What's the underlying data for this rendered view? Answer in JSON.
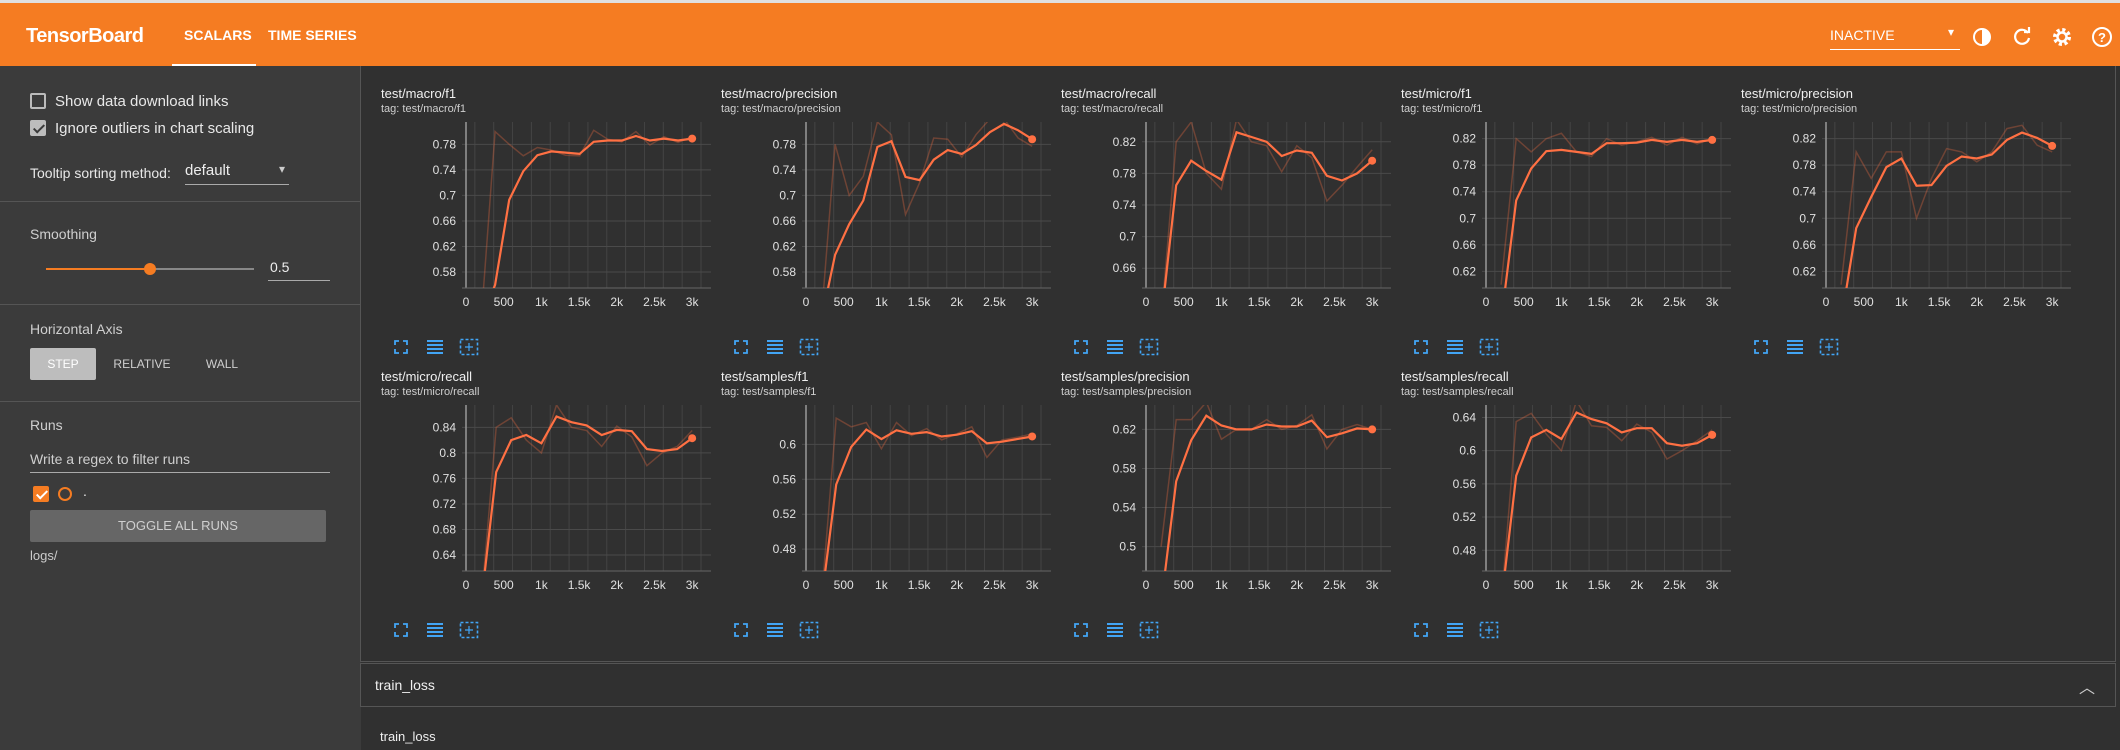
{
  "header": {
    "brand": "TensorBoard",
    "tabs": [
      {
        "label": "SCALARS"
      },
      {
        "label": "TIME SERIES"
      }
    ],
    "status_select": "INACTIVE"
  },
  "sidebar": {
    "show_download": "Show data download links",
    "ignore_outliers": "Ignore outliers in chart scaling",
    "tooltip_label": "Tooltip sorting method:",
    "tooltip_value": "default",
    "smoothing_label": "Smoothing",
    "smoothing_value": "0.5",
    "haxis_label": "Horizontal Axis",
    "haxis_options": [
      "STEP",
      "RELATIVE",
      "WALL"
    ],
    "runs_label": "Runs",
    "runs_filter_placeholder": "Write a regex to filter runs",
    "run_name": ".",
    "toggle_all": "TOGGLE ALL RUNS",
    "logdir": "logs/"
  },
  "colors": {
    "accent": "#f57c22",
    "line": "#ff7043"
  },
  "charts": [
    {
      "title": "test/macro/f1",
      "tag_label": "tag:",
      "tag": "test/macro/f1",
      "yticks": [
        "0.78",
        "0.74",
        "0.7",
        "0.66",
        "0.62",
        "0.58"
      ],
      "ylim": [
        0.555,
        0.815
      ],
      "smoothed": [
        0.2,
        0.56,
        0.693,
        0.738,
        0.763,
        0.769,
        0.767,
        0.765,
        0.784,
        0.786,
        0.786,
        0.793,
        0.786,
        0.789,
        0.786,
        0.789
      ],
      "raw": [
        0.53,
        0.8,
        0.78,
        0.762,
        0.775,
        0.771,
        0.763,
        0.762,
        0.802,
        0.788,
        0.784,
        0.8,
        0.779,
        0.792,
        0.783,
        0.792
      ]
    },
    {
      "title": "test/macro/precision",
      "tag_label": "tag:",
      "tag": "test/macro/precision",
      "yticks": [
        "0.78",
        "0.74",
        "0.7",
        "0.66",
        "0.62",
        "0.58"
      ],
      "ylim": [
        0.555,
        0.815
      ],
      "smoothed": [
        0.2,
        0.607,
        0.655,
        0.692,
        0.776,
        0.785,
        0.729,
        0.724,
        0.756,
        0.771,
        0.765,
        0.779,
        0.799,
        0.812,
        0.802,
        0.788
      ],
      "raw": [
        0.5,
        0.78,
        0.7,
        0.73,
        0.815,
        0.795,
        0.67,
        0.72,
        0.79,
        0.788,
        0.76,
        0.795,
        0.82,
        0.82,
        0.79,
        0.777
      ]
    },
    {
      "title": "test/macro/recall",
      "tag_label": "tag:",
      "tag": "test/macro/recall",
      "yticks": [
        "0.82",
        "0.78",
        "0.74",
        "0.7",
        "0.66"
      ],
      "ylim": [
        0.635,
        0.845
      ],
      "smoothed": [
        0.3,
        0.765,
        0.796,
        0.783,
        0.772,
        0.832,
        0.826,
        0.82,
        0.802,
        0.809,
        0.806,
        0.777,
        0.771,
        0.78,
        0.796
      ],
      "raw": [
        0.6,
        0.82,
        0.845,
        0.78,
        0.76,
        0.848,
        0.82,
        0.815,
        0.782,
        0.815,
        0.8,
        0.745,
        0.765,
        0.788,
        0.81
      ]
    },
    {
      "title": "test/micro/f1",
      "tag_label": "tag:",
      "tag": "test/micro/f1",
      "yticks": [
        "0.82",
        "0.78",
        "0.74",
        "0.7",
        "0.66",
        "0.62"
      ],
      "ylim": [
        0.595,
        0.845
      ],
      "smoothed": [
        0.3,
        0.727,
        0.775,
        0.801,
        0.803,
        0.8,
        0.797,
        0.813,
        0.813,
        0.814,
        0.818,
        0.815,
        0.818,
        0.815,
        0.818
      ],
      "raw": [
        0.6,
        0.82,
        0.8,
        0.82,
        0.828,
        0.8,
        0.793,
        0.82,
        0.81,
        0.815,
        0.822,
        0.81,
        0.822,
        0.812,
        0.82
      ]
    },
    {
      "title": "test/micro/precision",
      "tag_label": "tag:",
      "tag": "test/micro/precision",
      "yticks": [
        "0.82",
        "0.78",
        "0.74",
        "0.7",
        "0.66",
        "0.62"
      ],
      "ylim": [
        0.595,
        0.845
      ],
      "smoothed": [
        0.3,
        0.685,
        0.732,
        0.777,
        0.79,
        0.749,
        0.75,
        0.779,
        0.793,
        0.79,
        0.796,
        0.818,
        0.829,
        0.821,
        0.809
      ],
      "raw": [
        0.6,
        0.8,
        0.76,
        0.8,
        0.8,
        0.7,
        0.76,
        0.805,
        0.8,
        0.785,
        0.8,
        0.835,
        0.84,
        0.81,
        0.8
      ]
    },
    {
      "title": "test/micro/recall",
      "tag_label": "tag:",
      "tag": "test/micro/recall",
      "yticks": [
        "0.84",
        "0.8",
        "0.76",
        "0.72",
        "0.68",
        "0.64"
      ],
      "ylim": [
        0.615,
        0.875
      ],
      "smoothed": [
        0.3,
        0.77,
        0.82,
        0.828,
        0.815,
        0.857,
        0.848,
        0.843,
        0.828,
        0.836,
        0.834,
        0.806,
        0.803,
        0.806,
        0.823
      ],
      "raw": [
        0.6,
        0.84,
        0.855,
        0.82,
        0.8,
        0.875,
        0.84,
        0.835,
        0.81,
        0.842,
        0.825,
        0.78,
        0.8,
        0.81,
        0.835
      ]
    },
    {
      "title": "test/samples/f1",
      "tag_label": "tag:",
      "tag": "test/samples/f1",
      "yticks": [
        "0.6",
        "0.56",
        "0.52",
        "0.48"
      ],
      "ylim": [
        0.455,
        0.645
      ],
      "smoothed": [
        0.2,
        0.554,
        0.597,
        0.617,
        0.606,
        0.616,
        0.612,
        0.614,
        0.609,
        0.611,
        0.615,
        0.601,
        0.603,
        0.606,
        0.609
      ],
      "raw": [
        0.4,
        0.63,
        0.62,
        0.625,
        0.595,
        0.625,
        0.61,
        0.618,
        0.605,
        0.612,
        0.62,
        0.585,
        0.605,
        0.608,
        0.612
      ]
    },
    {
      "title": "test/samples/precision",
      "tag_label": "tag:",
      "tag": "test/samples/precision",
      "yticks": [
        "0.62",
        "0.58",
        "0.54",
        "0.5"
      ],
      "ylim": [
        0.475,
        0.645
      ],
      "smoothed": [
        0.3,
        0.567,
        0.609,
        0.634,
        0.624,
        0.62,
        0.62,
        0.625,
        0.623,
        0.623,
        0.629,
        0.612,
        0.616,
        0.621,
        0.62
      ],
      "raw": [
        0.5,
        0.63,
        0.63,
        0.648,
        0.61,
        0.62,
        0.62,
        0.63,
        0.62,
        0.624,
        0.635,
        0.6,
        0.62,
        0.625,
        0.62
      ]
    },
    {
      "title": "test/samples/recall",
      "tag_label": "tag:",
      "tag": "test/samples/recall",
      "yticks": [
        "0.64",
        "0.6",
        "0.56",
        "0.52",
        "0.48"
      ],
      "ylim": [
        0.455,
        0.655
      ],
      "smoothed": [
        0.2,
        0.57,
        0.616,
        0.625,
        0.614,
        0.646,
        0.638,
        0.633,
        0.622,
        0.627,
        0.627,
        0.609,
        0.606,
        0.609,
        0.619
      ],
      "raw": [
        0.4,
        0.635,
        0.645,
        0.62,
        0.6,
        0.66,
        0.63,
        0.628,
        0.612,
        0.632,
        0.622,
        0.59,
        0.6,
        0.612,
        0.625
      ]
    }
  ],
  "xticks": [
    "0",
    "500",
    "1k",
    "1.5k",
    "2k",
    "2.5k",
    "3k"
  ],
  "section": {
    "title": "train_loss",
    "sub_title": "train_loss"
  }
}
